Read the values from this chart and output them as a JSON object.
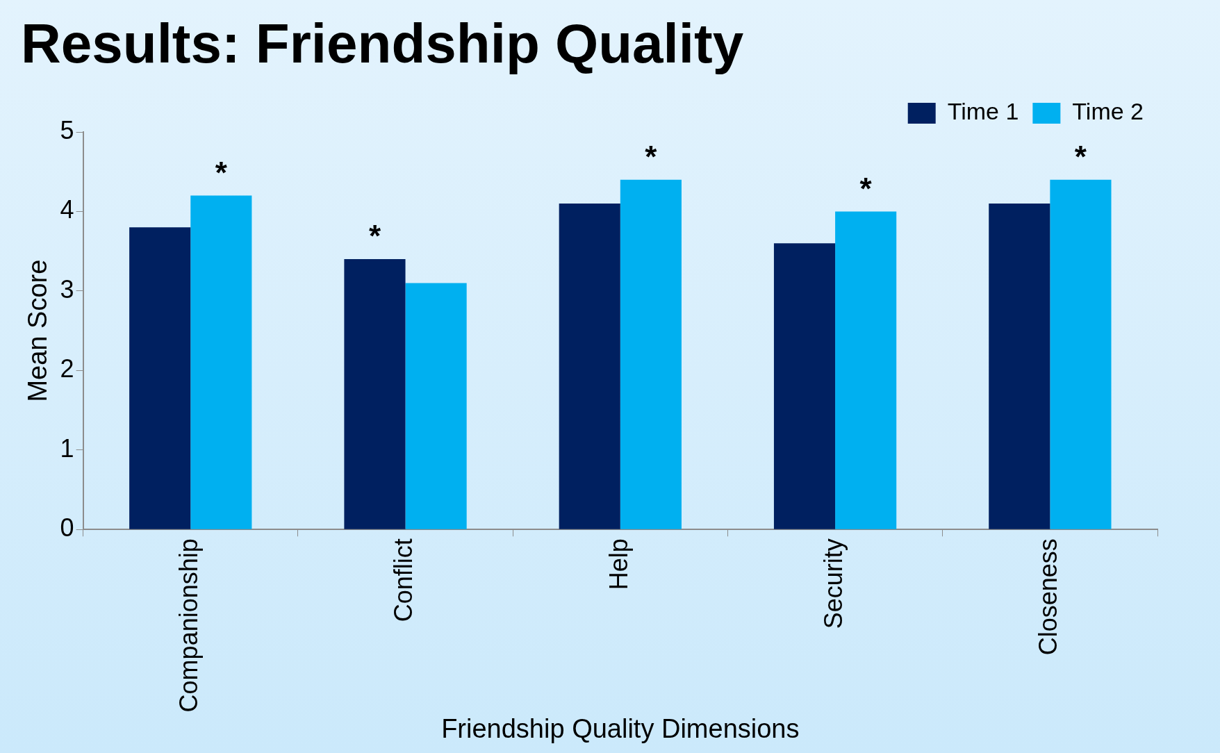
{
  "chart_data": {
    "type": "bar",
    "title": "Results: Friendship Quality",
    "xlabel": "Friendship Quality Dimensions",
    "ylabel": "Mean Score",
    "categories": [
      "Companionship",
      "Conflict",
      "Help",
      "Security",
      "Closeness"
    ],
    "series": [
      {
        "name": "Time 1",
        "color": "#002060",
        "values": [
          3.8,
          3.4,
          4.1,
          3.6,
          4.1
        ]
      },
      {
        "name": "Time 2",
        "color": "#00b0f0",
        "values": [
          4.2,
          3.1,
          4.4,
          4.0,
          4.4
        ]
      }
    ],
    "ylim": [
      0,
      5
    ],
    "yticks": [
      0,
      1,
      2,
      3,
      4,
      5
    ],
    "grid": false,
    "legend": "top right",
    "annotations": [
      "*",
      "*",
      "*",
      "*",
      "*"
    ]
  }
}
